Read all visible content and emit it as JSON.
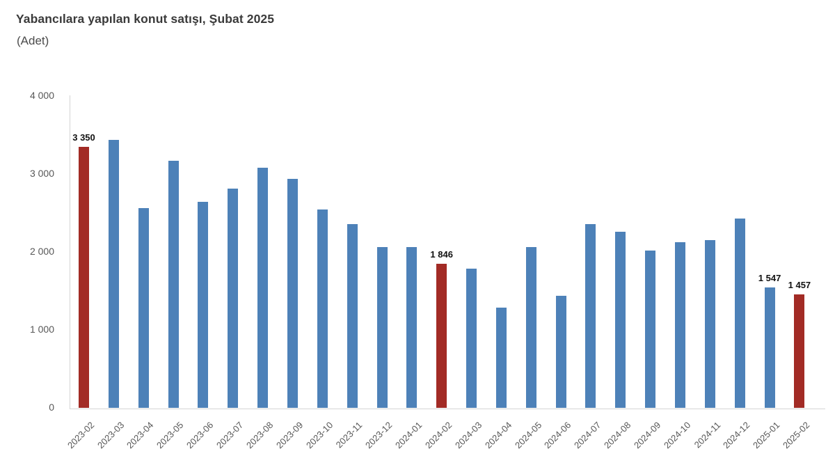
{
  "header": {
    "title": "Yabancılara yapılan konut satışı, Şubat 2025",
    "subtitle": "(Adet)"
  },
  "chart_data": {
    "type": "bar",
    "title": "Yabancılara yapılan konut satışı, Şubat 2025",
    "unit_label": "(Adet)",
    "categories": [
      "2023-02",
      "2023-03",
      "2023-04",
      "2023-05",
      "2023-06",
      "2023-07",
      "2023-08",
      "2023-09",
      "2023-10",
      "2023-11",
      "2023-12",
      "2024-01",
      "2024-02",
      "2024-03",
      "2024-04",
      "2024-05",
      "2024-06",
      "2024-07",
      "2024-08",
      "2024-09",
      "2024-10",
      "2024-11",
      "2024-12",
      "2025-01",
      "2025-02"
    ],
    "values": [
      3350,
      3435,
      2565,
      3170,
      2640,
      2815,
      3080,
      2940,
      2545,
      2360,
      2065,
      2065,
      1846,
      1785,
      1285,
      2065,
      1440,
      2360,
      2260,
      2020,
      2125,
      2155,
      2425,
      1547,
      1457
    ],
    "highlighted_categories": [
      "2023-02",
      "2024-02",
      "2025-02"
    ],
    "data_labels": [
      {
        "category": "2023-02",
        "text": "3 350"
      },
      {
        "category": "2024-02",
        "text": "1 846"
      },
      {
        "category": "2025-01",
        "text": "1 547"
      },
      {
        "category": "2025-02",
        "text": "1 457"
      }
    ],
    "y_ticks": [
      {
        "value": 4000,
        "label": "4 000"
      },
      {
        "value": 3000,
        "label": "3 000"
      },
      {
        "value": 2000,
        "label": "2 000"
      },
      {
        "value": 1000,
        "label": "1 000"
      },
      {
        "value": 0,
        "label": "0"
      }
    ],
    "ylim": [
      0,
      4000
    ],
    "xlabel": "",
    "ylabel": "Adet",
    "grid": false,
    "legend": false,
    "colors": {
      "bar_default": "#4d81b8",
      "bar_highlight": "#a22b25",
      "axis_line": "#d4d4d4",
      "tick_text": "#575757",
      "data_label_text": "#111111"
    }
  }
}
